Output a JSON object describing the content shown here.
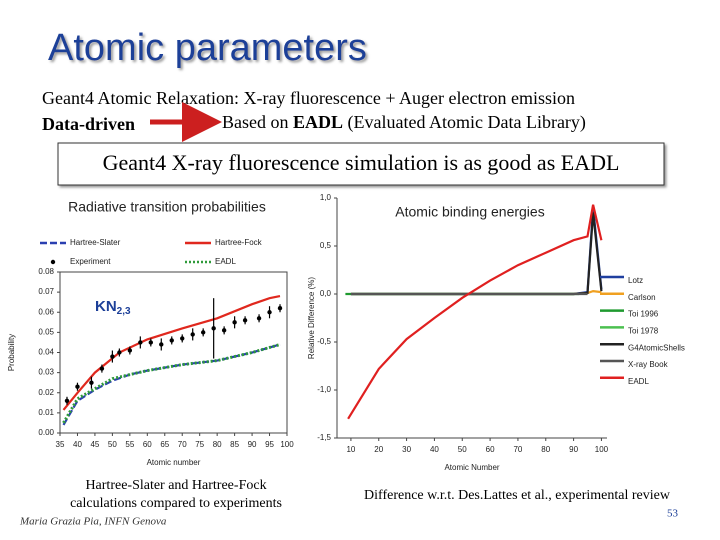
{
  "slide": {
    "title": "Atomic parameters",
    "subtitle": "Geant4 Atomic Relaxation: X-ray fluorescence + Auger electron emission",
    "data_driven": "Data-driven",
    "based_on": "Based on",
    "eadl": "EADL",
    "eadl_full": "(Evaluated Atomic Data Library)",
    "statement": "Geant4 X-ray fluorescence simulation is as good as EADL",
    "caption_left": [
      "Hartree-Slater and Hartree-Fock",
      "calculations compared to experiments"
    ],
    "caption_right": "Difference w.r.t. Des.Lattes et al., experimental review",
    "author": "Maria Grazia Pia, INFN Genova",
    "page_number": "53"
  },
  "chart_data": [
    {
      "type": "line",
      "title": "Radiative transition probabilities",
      "annotation": {
        "text": "KN",
        "subscript": "2,3"
      },
      "x_label": "Atomic number",
      "y_label": "Probability",
      "xlim": [
        35,
        100
      ],
      "xticks": [
        35,
        40,
        45,
        50,
        55,
        60,
        65,
        70,
        75,
        80,
        85,
        90,
        95,
        100
      ],
      "ylim": [
        0,
        0.08
      ],
      "yticks": [
        {
          "value": 0,
          "label": "0.00"
        },
        0.01,
        0.02,
        0.03,
        0.04,
        0.05,
        0.06,
        0.07,
        0.08
      ],
      "legend": "top",
      "series": [
        {
          "name": "Hartree-Slater",
          "color": "#2a3fb0",
          "style": "dashed",
          "x": [
            36,
            40,
            45,
            50,
            55,
            60,
            70,
            80,
            90,
            98
          ],
          "values": [
            0.004,
            0.016,
            0.0215,
            0.026,
            0.029,
            0.031,
            0.034,
            0.036,
            0.04,
            0.044
          ]
        },
        {
          "name": "Hartree-Fock",
          "color": "#e0281e",
          "style": "solid",
          "x": [
            36,
            40,
            45,
            52,
            60,
            70,
            80,
            90,
            95,
            98
          ],
          "values": [
            0.0115,
            0.02,
            0.03,
            0.04,
            0.0465,
            0.052,
            0.057,
            0.064,
            0.067,
            0.068
          ]
        },
        {
          "name": "Experiment",
          "color": "#000000",
          "style": "markers",
          "x": [
            37,
            40,
            44,
            47,
            50,
            52,
            55,
            58,
            61,
            64,
            67,
            70,
            73,
            76,
            79,
            82,
            85,
            88,
            92,
            95,
            98
          ],
          "values": [
            0.016,
            0.023,
            0.025,
            0.032,
            0.038,
            0.04,
            0.041,
            0.045,
            0.045,
            0.044,
            0.046,
            0.047,
            0.049,
            0.05,
            0.052,
            0.051,
            0.055,
            0.056,
            0.057,
            0.06,
            0.062
          ],
          "errors": [
            0.002,
            0.002,
            0.003,
            0.002,
            0.003,
            0.002,
            0.002,
            0.003,
            0.002,
            0.003,
            0.002,
            0.002,
            0.003,
            0.002,
            0.015,
            0.002,
            0.003,
            0.002,
            0.002,
            0.003,
            0.002
          ]
        },
        {
          "name": "EADL",
          "color": "#2f9a3a",
          "style": "dotted",
          "x": [
            36,
            40,
            45,
            50,
            55,
            60,
            70,
            80,
            90,
            98
          ],
          "values": [
            0.005,
            0.017,
            0.022,
            0.027,
            0.029,
            0.031,
            0.034,
            0.036,
            0.04,
            0.044
          ]
        }
      ]
    },
    {
      "type": "line",
      "title": "Atomic binding energies",
      "x_label": "Atomic Number",
      "y_label": "Relative Difference (%)",
      "xlim": [
        5,
        102
      ],
      "xticks": [
        10,
        20,
        30,
        40,
        50,
        60,
        70,
        80,
        90,
        100
      ],
      "ylim": [
        -1.5,
        1.0
      ],
      "yticks": [
        {
          "value": 1.0,
          "label": "1,0"
        },
        {
          "value": 0.5,
          "label": "0,5"
        },
        {
          "value": 0,
          "label": "0,0"
        },
        {
          "value": -0.5,
          "label": "-0,5"
        },
        {
          "value": -1.0,
          "label": "-1,0"
        },
        {
          "value": -1.5,
          "label": "-1,5"
        }
      ],
      "legend": "right",
      "series": [
        {
          "name": "Lotz",
          "color": "#1f3f9f",
          "style": "solid",
          "x": [
            10,
            30,
            50,
            70,
            90,
            95,
            97,
            100
          ],
          "values": [
            0,
            0,
            0,
            0,
            0,
            0.02,
            0.9,
            0.05
          ]
        },
        {
          "name": "Carlson",
          "color": "#f0a020",
          "style": "solid",
          "x": [
            10,
            30,
            50,
            70,
            90,
            95,
            97,
            100
          ],
          "values": [
            0,
            0,
            0,
            0,
            0,
            0.01,
            0.03,
            0.02
          ]
        },
        {
          "name": "Toi 1996",
          "color": "#1f9a2f",
          "style": "solid",
          "x": [
            8,
            30,
            50,
            70,
            92
          ],
          "values": [
            0,
            0,
            0,
            0,
            0
          ]
        },
        {
          "name": "Toi 1978",
          "color": "#4cc050",
          "style": "solid",
          "x": [
            10,
            30,
            50,
            70,
            90
          ],
          "values": [
            0,
            0,
            0,
            0,
            0
          ]
        },
        {
          "name": "G4AtomicShells",
          "color": "#222222",
          "style": "solid",
          "x": [
            10,
            30,
            50,
            70,
            90,
            95,
            97,
            100
          ],
          "values": [
            0,
            0,
            0,
            0,
            0,
            0.01,
            0.85,
            0.03
          ]
        },
        {
          "name": "X-ray Book",
          "color": "#555555",
          "style": "solid",
          "x": [
            10,
            30,
            50,
            70,
            90,
            95
          ],
          "values": [
            0,
            0,
            0,
            0,
            0,
            0
          ]
        },
        {
          "name": "EADL",
          "color": "#e02020",
          "style": "solid",
          "x": [
            9,
            20,
            30,
            40,
            50,
            60,
            70,
            80,
            90,
            95,
            97,
            100
          ],
          "values": [
            -1.3,
            -0.78,
            -0.47,
            -0.25,
            -0.04,
            0.14,
            0.3,
            0.43,
            0.56,
            0.6,
            0.93,
            0.56
          ]
        }
      ]
    }
  ]
}
